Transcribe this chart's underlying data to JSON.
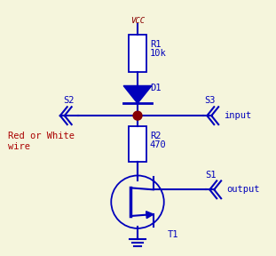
{
  "bg_color": "#f5f5dc",
  "wire_color": "#0000bb",
  "vcc_color": "#880000",
  "label_color": "#0000bb",
  "dot_color": "#880000",
  "red_label_color": "#aa0000",
  "vcc_label": "VCC",
  "r1_label1": "R1",
  "r1_label2": "10k",
  "r2_label1": "R2",
  "r2_label2": "470",
  "d1_label": "D1",
  "t1_label": "T1",
  "s1_label": "S1",
  "s2_label": "S2",
  "s3_label": "S3",
  "input_label": "input",
  "output_label": "output",
  "red_wire_label1": "Red or White",
  "red_wire_label2": "wire",
  "font_size": 7.5,
  "fig_w": 3.11,
  "fig_h": 2.88,
  "dpi": 100
}
